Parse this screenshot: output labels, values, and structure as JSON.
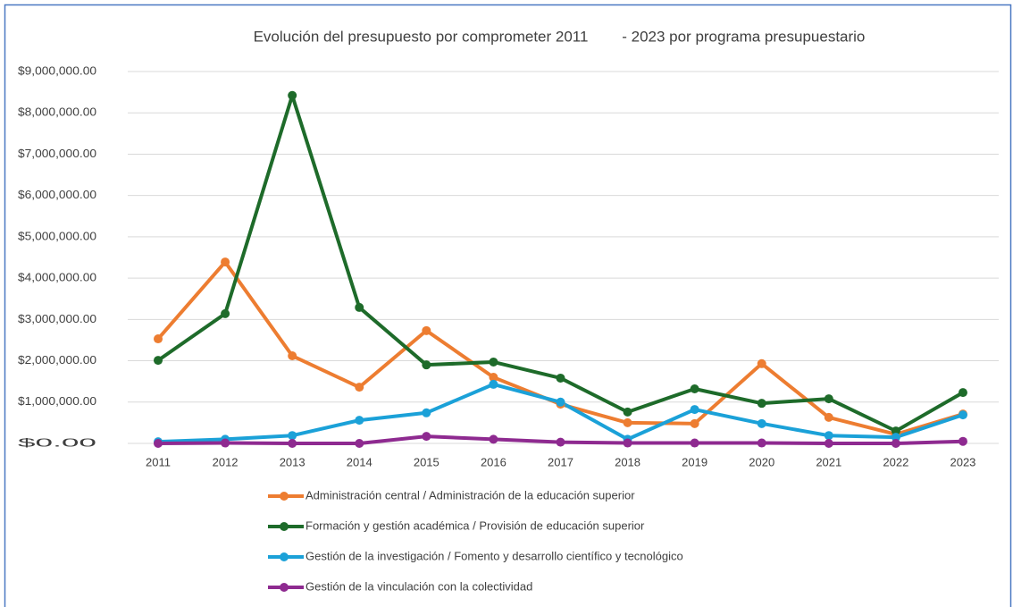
{
  "chart_data": {
    "type": "line",
    "title": "Evolución del presupuesto por comprometer 2011        - 2023 por programa presupuestario",
    "categories": [
      "2011",
      "2012",
      "2013",
      "2014",
      "2015",
      "2016",
      "2017",
      "2018",
      "2019",
      "2020",
      "2021",
      "2022",
      "2023"
    ],
    "series": [
      {
        "name": "Administración central / Administración de la educación superior",
        "color": "#ed7d31",
        "values": [
          2530000,
          4390000,
          2120000,
          1360000,
          2730000,
          1600000,
          950000,
          500000,
          480000,
          1930000,
          630000,
          220000,
          710000
        ]
      },
      {
        "name": "Formación y gestión académica / Provisión de educación superior",
        "color": "#1e6b2a",
        "values": [
          2010000,
          3140000,
          8420000,
          3290000,
          1900000,
          1970000,
          1580000,
          760000,
          1320000,
          970000,
          1080000,
          300000,
          1230000
        ]
      },
      {
        "name": "Gestión de la investigación / Fomento y desarrollo científico y tecnológico",
        "color": "#1ba1d8",
        "values": [
          40000,
          100000,
          190000,
          560000,
          740000,
          1430000,
          1000000,
          100000,
          820000,
          480000,
          190000,
          150000,
          690000
        ]
      },
      {
        "name": "Gestión de la vinculación con la colectividad",
        "color": "#8e2a90",
        "values": [
          0,
          10000,
          0,
          0,
          170000,
          100000,
          30000,
          10000,
          10000,
          10000,
          0,
          0,
          50000
        ]
      }
    ],
    "ylim": [
      0,
      9000000
    ],
    "yticks": [
      {
        "value": 0,
        "label": "$0.00"
      },
      {
        "value": 1000000,
        "label": "$1,000,000.00"
      },
      {
        "value": 2000000,
        "label": "$2,000,000.00"
      },
      {
        "value": 3000000,
        "label": "$3,000,000.00"
      },
      {
        "value": 4000000,
        "label": "$4,000,000.00"
      },
      {
        "value": 5000000,
        "label": "$5,000,000.00"
      },
      {
        "value": 6000000,
        "label": "$6,000,000.00"
      },
      {
        "value": 7000000,
        "label": "$7,000,000.00"
      },
      {
        "value": 8000000,
        "label": "$8,000,000.00"
      },
      {
        "value": 9000000,
        "label": "$9,000,000.00"
      }
    ],
    "grid": true,
    "legend": "bottom"
  }
}
